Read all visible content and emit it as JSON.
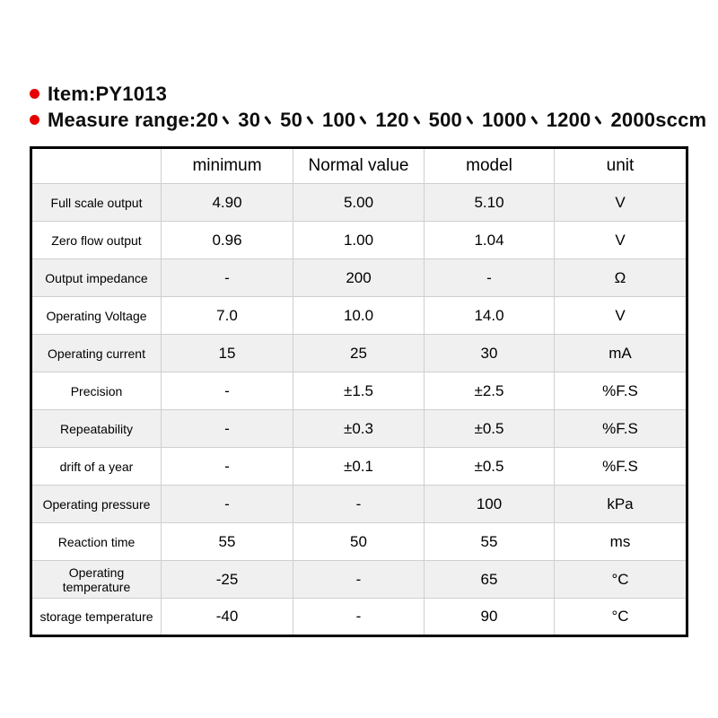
{
  "colors": {
    "bullet_red": "#e60000",
    "alt_row_bg": "#f0f0f0",
    "grid_line": "#cfcfcf",
    "outer_border": "#000000"
  },
  "header": {
    "item_text": "Item:PY1013",
    "measure_line": {
      "full_text": "Measure range:20、30、50、100、120、500、1000、1200、2000sccm",
      "prefix": "Measure range:",
      "values": [
        "20",
        "30",
        "50",
        "100",
        "120",
        "500",
        "1000",
        "1200",
        "2000sccm"
      ]
    }
  },
  "table": {
    "columns": [
      "",
      "minimum",
      "Normal value",
      "model",
      "unit"
    ],
    "rows": [
      {
        "label": "Full scale output",
        "minimum": "4.90",
        "normal": "5.00",
        "model": "5.10",
        "unit": "V"
      },
      {
        "label": "Zero flow output",
        "minimum": "0.96",
        "normal": "1.00",
        "model": "1.04",
        "unit": "V"
      },
      {
        "label": "Output impedance",
        "minimum": "-",
        "normal": "200",
        "model": "-",
        "unit": "Ω"
      },
      {
        "label": "Operating Voltage",
        "minimum": "7.0",
        "normal": "10.0",
        "model": "14.0",
        "unit": "V"
      },
      {
        "label": "Operating current",
        "minimum": "15",
        "normal": "25",
        "model": "30",
        "unit": "mA"
      },
      {
        "label": "Precision",
        "minimum": "-",
        "normal": "±1.5",
        "model": "±2.5",
        "unit": "%F.S"
      },
      {
        "label": "Repeatability",
        "minimum": "-",
        "normal": "±0.3",
        "model": "±0.5",
        "unit": "%F.S"
      },
      {
        "label": "drift of a year",
        "minimum": "-",
        "normal": "±0.1",
        "model": "±0.5",
        "unit": "%F.S"
      },
      {
        "label": "Operating pressure",
        "minimum": "-",
        "normal": "-",
        "model": "100",
        "unit": "kPa"
      },
      {
        "label": "Reaction time",
        "minimum": "55",
        "normal": "50",
        "model": "55",
        "unit": "ms"
      },
      {
        "label": "Operating temperature",
        "minimum": "-25",
        "normal": "-",
        "model": "65",
        "unit": "°C"
      },
      {
        "label": "storage temperature",
        "minimum": "-40",
        "normal": "-",
        "model": "90",
        "unit": "°C"
      }
    ]
  }
}
